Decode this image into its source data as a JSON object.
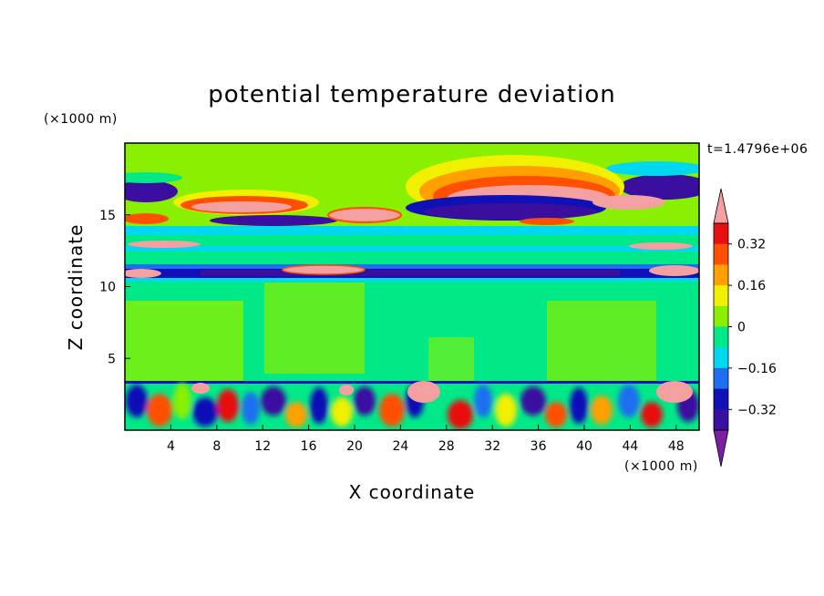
{
  "chart_data": {
    "type": "heatmap",
    "title": "potential temperature deviation",
    "xlabel": "X coordinate",
    "ylabel": "Z coordinate",
    "x_unit": "(×1000 m)",
    "y_unit": "(×1000 m)",
    "time_label": "t=1.4796e+06",
    "xlim": [
      0,
      50
    ],
    "ylim": [
      0,
      20
    ],
    "x_ticks": [
      "4",
      "8",
      "12",
      "16",
      "20",
      "24",
      "28",
      "32",
      "36",
      "40",
      "44",
      "48"
    ],
    "y_ticks": [
      "5",
      "10",
      "15"
    ],
    "colorbar": {
      "levels": [
        -0.4,
        -0.32,
        -0.24,
        -0.16,
        -0.08,
        0,
        0.08,
        0.16,
        0.24,
        0.32,
        0.4
      ],
      "tick_labels": [
        "0.32",
        "0.16",
        "0",
        "−0.16",
        "−0.32"
      ],
      "tick_values": [
        0.32,
        0.16,
        0,
        -0.16,
        -0.32
      ],
      "colors": [
        "#7a1fa2",
        "#3a0fa0",
        "#1010b8",
        "#1e6ff0",
        "#00d8f0",
        "#00e888",
        "#88f000",
        "#f0f000",
        "#ffa000",
        "#ff5000",
        "#e81010",
        "#f4a0a0"
      ],
      "extend": "both"
    },
    "field_description_bands": [
      {
        "z_range": [
          0,
          3.5
        ],
        "pattern": "turbulent mixed layer with alternating strong anomalies"
      },
      {
        "z_range": [
          3.5,
          10.5
        ],
        "pattern": "near-zero deviation, slight positive/negative columns"
      },
      {
        "z_range": [
          10.5,
          11.3
        ],
        "pattern": "strong negative layer"
      },
      {
        "z_range": [
          11.3,
          15
        ],
        "pattern": "layered small anomalies"
      },
      {
        "z_range": [
          15,
          20
        ],
        "pattern": "large positive and negative features near top"
      }
    ]
  }
}
